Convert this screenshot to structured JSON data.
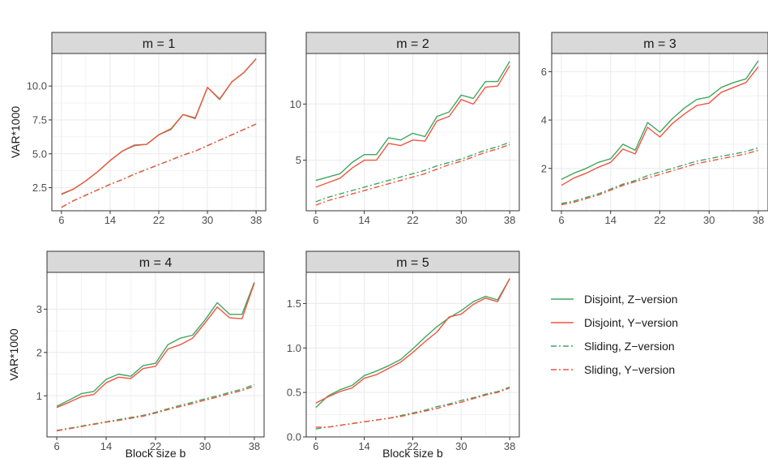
{
  "colors": {
    "z_version": "#3fa763",
    "y_version": "#f0553f",
    "strip_bg": "#d9d9d9",
    "grid": "#ebebeb",
    "border": "#333333"
  },
  "chart_data": {
    "type": "line",
    "facet_variable": "m",
    "xlabel": "Block size b",
    "ylabel": "VAR*1000",
    "x": [
      6,
      8,
      10,
      12,
      14,
      16,
      18,
      20,
      22,
      24,
      26,
      28,
      30,
      32,
      34,
      36,
      38
    ],
    "x_ticks": [
      "6",
      "14",
      "22",
      "30",
      "38"
    ],
    "legend": [
      {
        "name": "Disjoint, Z−version",
        "color": "#3fa763",
        "dash": "solid"
      },
      {
        "name": "Disjoint, Y−version",
        "color": "#f0553f",
        "dash": "solid"
      },
      {
        "name": "Sliding, Z−version",
        "color": "#3fa763",
        "dash": "dashdot"
      },
      {
        "name": "Sliding, Y−version",
        "color": "#f0553f",
        "dash": "dashdot"
      }
    ],
    "panels": [
      {
        "strip": "m = 1",
        "ylim": [
          0.8,
          12.4
        ],
        "y_ticks": [
          2.5,
          5.0,
          7.5,
          10.0
        ],
        "y_tick_labels": [
          "2.5",
          "5.0",
          "7.5",
          "10.0"
        ],
        "show_ylabel": true,
        "show_xlabel": false,
        "series": [
          {
            "name": "Disjoint, Z−version",
            "values": [
              2.0,
              2.4,
              3.0,
              3.7,
              4.5,
              5.2,
              5.6,
              5.7,
              6.4,
              6.8,
              7.9,
              7.6,
              9.9,
              9.0,
              10.3,
              11.0,
              12.0
            ]
          },
          {
            "name": "Disjoint, Y−version",
            "values": [
              2.05,
              2.4,
              3.0,
              3.7,
              4.5,
              5.2,
              5.65,
              5.7,
              6.4,
              6.85,
              7.9,
              7.65,
              9.9,
              9.05,
              10.3,
              11.0,
              12.0
            ]
          },
          {
            "name": "Sliding, Z−version",
            "values": [
              1.05,
              1.55,
              1.95,
              2.35,
              2.75,
              3.1,
              3.5,
              3.85,
              4.2,
              4.55,
              4.9,
              5.2,
              5.6,
              6.0,
              6.4,
              6.8,
              7.2
            ]
          },
          {
            "name": "Sliding, Y−version",
            "values": [
              1.05,
              1.55,
              1.95,
              2.35,
              2.75,
              3.1,
              3.5,
              3.85,
              4.2,
              4.55,
              4.9,
              5.2,
              5.6,
              6.0,
              6.4,
              6.8,
              7.2
            ]
          }
        ]
      },
      {
        "strip": "m = 2",
        "ylim": [
          0.5,
          14.5
        ],
        "y_ticks": [
          5,
          10
        ],
        "y_tick_labels": [
          "5",
          "10"
        ],
        "show_ylabel": false,
        "show_xlabel": false,
        "series": [
          {
            "name": "Disjoint, Z−version",
            "values": [
              3.2,
              3.5,
              3.8,
              4.8,
              5.5,
              5.5,
              7.0,
              6.8,
              7.4,
              7.1,
              8.9,
              9.3,
              10.8,
              10.5,
              12.0,
              12.0,
              13.8
            ]
          },
          {
            "name": "Disjoint, Y−version",
            "values": [
              2.6,
              3.0,
              3.4,
              4.3,
              5.0,
              5.0,
              6.5,
              6.3,
              6.8,
              6.7,
              8.5,
              8.9,
              10.4,
              10.0,
              11.5,
              11.6,
              13.4
            ]
          },
          {
            "name": "Sliding, Z−version",
            "values": [
              1.3,
              1.7,
              2.0,
              2.3,
              2.6,
              2.9,
              3.2,
              3.5,
              3.8,
              4.1,
              4.5,
              4.8,
              5.1,
              5.5,
              5.9,
              6.2,
              6.6
            ]
          },
          {
            "name": "Sliding, Y−version",
            "values": [
              1.0,
              1.4,
              1.7,
              2.0,
              2.3,
              2.6,
              2.9,
              3.2,
              3.5,
              3.8,
              4.2,
              4.6,
              4.9,
              5.3,
              5.7,
              6.0,
              6.4
            ]
          }
        ]
      },
      {
        "strip": "m = 3",
        "ylim": [
          0.25,
          6.75
        ],
        "y_ticks": [
          2,
          4,
          6
        ],
        "y_tick_labels": [
          "2",
          "4",
          "6"
        ],
        "show_ylabel": false,
        "show_xlabel": false,
        "series": [
          {
            "name": "Disjoint, Z−version",
            "values": [
              1.55,
              1.8,
              2.0,
              2.25,
              2.4,
              3.0,
              2.75,
              3.9,
              3.5,
              4.05,
              4.5,
              4.85,
              4.95,
              5.35,
              5.55,
              5.7,
              6.45
            ]
          },
          {
            "name": "Disjoint, Y−version",
            "values": [
              1.3,
              1.6,
              1.8,
              2.05,
              2.25,
              2.8,
              2.6,
              3.7,
              3.3,
              3.85,
              4.25,
              4.6,
              4.7,
              5.15,
              5.35,
              5.55,
              6.2
            ]
          },
          {
            "name": "Sliding, Z−version",
            "values": [
              0.55,
              0.65,
              0.8,
              0.95,
              1.15,
              1.35,
              1.5,
              1.7,
              1.85,
              2.0,
              2.15,
              2.3,
              2.4,
              2.5,
              2.6,
              2.7,
              2.85
            ]
          },
          {
            "name": "Sliding, Y−version",
            "values": [
              0.5,
              0.6,
              0.75,
              0.9,
              1.1,
              1.3,
              1.45,
              1.6,
              1.75,
              1.9,
              2.05,
              2.2,
              2.3,
              2.4,
              2.5,
              2.6,
              2.75
            ]
          }
        ]
      },
      {
        "strip": "m = 4",
        "ylim": [
          0.05,
          3.85
        ],
        "y_ticks": [
          1,
          2,
          3
        ],
        "y_tick_labels": [
          "1",
          "2",
          "3"
        ],
        "show_ylabel": true,
        "show_xlabel": true,
        "series": [
          {
            "name": "Disjoint, Z−version",
            "values": [
              0.76,
              0.9,
              1.05,
              1.1,
              1.38,
              1.5,
              1.45,
              1.7,
              1.75,
              2.18,
              2.33,
              2.4,
              2.75,
              3.15,
              2.88,
              2.88,
              3.62
            ]
          },
          {
            "name": "Disjoint, Y−version",
            "values": [
              0.73,
              0.85,
              0.98,
              1.03,
              1.3,
              1.43,
              1.4,
              1.63,
              1.68,
              2.08,
              2.18,
              2.33,
              2.68,
              3.05,
              2.8,
              2.78,
              3.6
            ]
          },
          {
            "name": "Sliding, Z−version",
            "values": [
              0.2,
              0.25,
              0.3,
              0.35,
              0.4,
              0.45,
              0.5,
              0.55,
              0.62,
              0.7,
              0.78,
              0.85,
              0.93,
              1.0,
              1.08,
              1.15,
              1.26
            ]
          },
          {
            "name": "Sliding, Y−version",
            "values": [
              0.19,
              0.24,
              0.29,
              0.34,
              0.39,
              0.43,
              0.48,
              0.53,
              0.6,
              0.68,
              0.75,
              0.82,
              0.9,
              0.97,
              1.05,
              1.12,
              1.22
            ]
          }
        ]
      },
      {
        "strip": "m = 5",
        "ylim": [
          0.0,
          1.85
        ],
        "y_ticks": [
          0.0,
          0.5,
          1.0,
          1.5
        ],
        "y_tick_labels": [
          "0.0",
          "0.5",
          "1.0",
          "1.5"
        ],
        "show_ylabel": false,
        "show_xlabel": true,
        "series": [
          {
            "name": "Disjoint, Z−version",
            "values": [
              0.33,
              0.46,
              0.53,
              0.58,
              0.69,
              0.74,
              0.8,
              0.87,
              0.99,
              1.12,
              1.24,
              1.34,
              1.42,
              1.52,
              1.58,
              1.54,
              1.78
            ]
          },
          {
            "name": "Disjoint, Y−version",
            "values": [
              0.38,
              0.45,
              0.51,
              0.55,
              0.66,
              0.7,
              0.77,
              0.84,
              0.95,
              1.07,
              1.18,
              1.35,
              1.38,
              1.49,
              1.56,
              1.52,
              1.78
            ]
          },
          {
            "name": "Sliding, Z−version",
            "values": [
              0.09,
              0.11,
              0.13,
              0.15,
              0.17,
              0.19,
              0.21,
              0.24,
              0.27,
              0.3,
              0.34,
              0.37,
              0.41,
              0.44,
              0.48,
              0.51,
              0.56
            ]
          },
          {
            "name": "Sliding, Y−version",
            "values": [
              0.11,
              0.11,
              0.13,
              0.15,
              0.17,
              0.19,
              0.21,
              0.23,
              0.26,
              0.29,
              0.32,
              0.36,
              0.39,
              0.43,
              0.47,
              0.5,
              0.55
            ]
          }
        ]
      }
    ]
  }
}
